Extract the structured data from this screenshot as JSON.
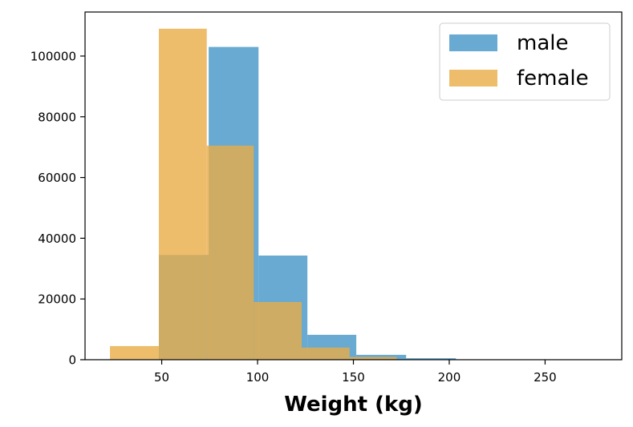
{
  "chart_data": {
    "type": "histogram",
    "title": "",
    "xlabel": "Weight (kg)",
    "ylabel": "",
    "xlim": [
      10,
      290
    ],
    "ylim": [
      0,
      114500
    ],
    "xticks": [
      50,
      100,
      150,
      200,
      250
    ],
    "yticks": [
      0,
      20000,
      40000,
      60000,
      80000,
      100000
    ],
    "grid": false,
    "legend_position": "top-right",
    "series": [
      {
        "name": "male",
        "color": "#3a90c3",
        "opacity": 0.77,
        "bins": [
          {
            "x0": 48.5,
            "x1": 74.5,
            "count": 34500
          },
          {
            "x0": 74.5,
            "x1": 100.5,
            "count": 103000
          },
          {
            "x0": 100.5,
            "x1": 126.0,
            "count": 34300
          },
          {
            "x0": 126.0,
            "x1": 151.5,
            "count": 8200
          },
          {
            "x0": 151.5,
            "x1": 177.5,
            "count": 1600
          },
          {
            "x0": 177.5,
            "x1": 203.5,
            "count": 500
          },
          {
            "x0": 203.5,
            "x1": 229.0,
            "count": 80
          },
          {
            "x0": 229.0,
            "x1": 255.0,
            "count": 20
          },
          {
            "x0": 255.0,
            "x1": 280.5,
            "count": 5
          }
        ]
      },
      {
        "name": "female",
        "color": "#e8ad47",
        "opacity": 0.8,
        "bins": [
          {
            "x0": 23.0,
            "x1": 48.5,
            "count": 4500
          },
          {
            "x0": 48.5,
            "x1": 73.5,
            "count": 109000
          },
          {
            "x0": 73.5,
            "x1": 98.0,
            "count": 70500
          },
          {
            "x0": 98.0,
            "x1": 123.0,
            "count": 19000
          },
          {
            "x0": 123.0,
            "x1": 148.0,
            "count": 4000
          },
          {
            "x0": 148.0,
            "x1": 172.5,
            "count": 900
          },
          {
            "x0": 172.5,
            "x1": 197.5,
            "count": 150
          },
          {
            "x0": 197.5,
            "x1": 222.0,
            "count": 30
          },
          {
            "x0": 222.0,
            "x1": 247.0,
            "count": 5
          }
        ]
      }
    ]
  }
}
